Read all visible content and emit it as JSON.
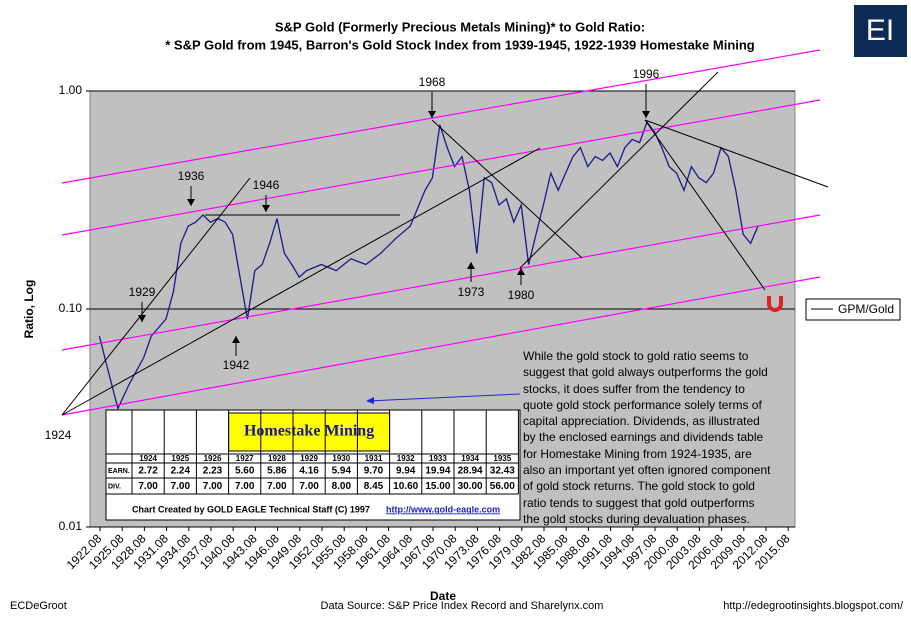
{
  "chart_data": {
    "type": "line",
    "title": "S&P Gold (Formerly Precious Metals Mining)* to Gold Ratio:",
    "subtitle": "* S&P Gold from 1945, Barron's Gold Stock Index from 1939-1945, 1922-1939 Homestake Mining",
    "x_label": "Date",
    "y_label": "Ratio, Log",
    "log_y": true,
    "grid": true,
    "legend": "right",
    "x": [
      1922,
      1923,
      1924.5,
      1926,
      1928,
      1929,
      1931,
      1932,
      1933,
      1934,
      1935,
      1936,
      1937,
      1938,
      1939,
      1940,
      1941,
      1942,
      1943,
      1944,
      1945,
      1946,
      1947,
      1948,
      1949,
      1950,
      1952,
      1954,
      1956,
      1958,
      1960,
      1962,
      1964,
      1966,
      1967,
      1968,
      1969,
      1970,
      1971,
      1972,
      1973,
      1974,
      1975,
      1976,
      1977,
      1978,
      1979,
      1980,
      1981,
      1982,
      1983,
      1984,
      1985,
      1986,
      1987,
      1988,
      1989,
      1990,
      1991,
      1992,
      1993,
      1994,
      1995,
      1996,
      1997,
      1998,
      1999,
      2000,
      2001,
      2002,
      2003,
      2004,
      2005,
      2006,
      2007,
      2008,
      2009,
      2010,
      2011
    ],
    "series": [
      {
        "name": "GPM/Gold",
        "color": "#1a1a8c",
        "values": [
          0.075,
          0.055,
          0.035,
          0.045,
          0.06,
          0.075,
          0.09,
          0.12,
          0.2,
          0.24,
          0.25,
          0.27,
          0.25,
          0.26,
          0.25,
          0.22,
          0.14,
          0.09,
          0.15,
          0.16,
          0.2,
          0.26,
          0.18,
          0.16,
          0.14,
          0.15,
          0.16,
          0.15,
          0.17,
          0.16,
          0.18,
          0.21,
          0.24,
          0.35,
          0.4,
          0.7,
          0.55,
          0.45,
          0.5,
          0.35,
          0.18,
          0.4,
          0.38,
          0.3,
          0.32,
          0.25,
          0.3,
          0.16,
          0.22,
          0.3,
          0.42,
          0.35,
          0.42,
          0.5,
          0.55,
          0.45,
          0.5,
          0.48,
          0.52,
          0.45,
          0.55,
          0.6,
          0.58,
          0.72,
          0.65,
          0.55,
          0.45,
          0.42,
          0.35,
          0.45,
          0.4,
          0.38,
          0.42,
          0.55,
          0.5,
          0.35,
          0.22,
          0.2,
          0.24
        ]
      }
    ],
    "xlim": [
      1920.73,
      2016.0
    ],
    "xticks": [
      1922.08,
      1925.08,
      1928.08,
      1931.08,
      1934.08,
      1937.08,
      1940.08,
      1943.08,
      1946.08,
      1949.08,
      1952.08,
      1955.08,
      1958.08,
      1961.08,
      1964.08,
      1967.08,
      1970.08,
      1973.08,
      1976.08,
      1979.08,
      1982.08,
      1985.08,
      1988.08,
      1991.08,
      1994.08,
      1997.08,
      2000.08,
      2003.08,
      2006.08,
      2009.08,
      2012.08,
      2015.08
    ],
    "ylim": [
      0.01,
      1
    ],
    "yticks": [
      0.01,
      {
        "value": 0.1,
        "label": "0.10"
      },
      {
        "value": 1,
        "label": "1.00"
      }
    ],
    "annotations": [
      "1936",
      "1946",
      "1929",
      "1942",
      "1924",
      "1968",
      "1973",
      "1980",
      "1996"
    ],
    "commentary": "While the gold stock to gold ratio seems to suggest that gold always outperforms the gold stocks, it does suffer from the tendency to quote gold stock performance solely terms of capital appreciation.  Dividends, as illustrated by the enclosed earnings and dividends table for Homestake Mining from 1924-1935, are also an important yet often ignored component of gold stock returns.  The gold stock to gold ratio tends to suggest that gold outperforms the gold stocks during devaluation phases.",
    "table": {
      "title": "Homestake Mining",
      "columns": [
        "1924",
        "1925",
        "1926",
        "1927",
        "1928",
        "1929",
        "1930",
        "1931",
        "1932",
        "1933",
        "1934",
        "1935"
      ],
      "rows": [
        {
          "label": "EARN.",
          "values": [
            "2.72",
            "2.24",
            "2.23",
            "5.60",
            "5.86",
            "4.16",
            "5.94",
            "9.70",
            "9.94",
            "19.94",
            "28.94",
            "32.43"
          ]
        },
        {
          "label": "DIV.",
          "values": [
            "7.00",
            "7.00",
            "7.00",
            "7.00",
            "7.00",
            "7.00",
            "8.00",
            "8.45",
            "10.60",
            "15.00",
            "30.00",
            "56.00"
          ]
        }
      ],
      "credit": "Chart Created by GOLD EAGLE Technical Staff (C) 1997",
      "link": "http://www.gold-eagle.com"
    }
  },
  "logo": "EI",
  "footer": {
    "left": "ECDeGroot",
    "center": "Data Source: S&P Price Index Record and Sharelynx.com",
    "right": "http://edegrootinsights.blogspot.com/"
  }
}
